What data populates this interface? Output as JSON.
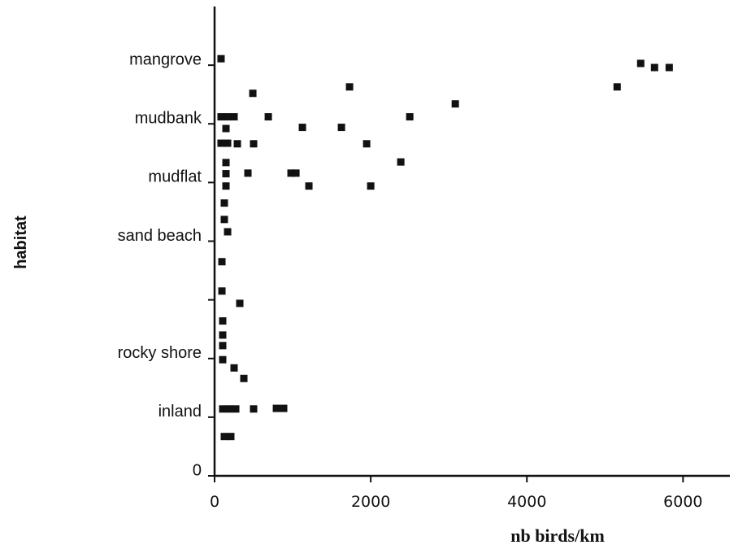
{
  "chart_data": {
    "type": "scatter",
    "xlabel": "nb birds/km",
    "ylabel": "habitat",
    "xlim": [
      0,
      6600
    ],
    "ylim": [
      0,
      8
    ],
    "xticks": [
      0,
      2000,
      4000,
      6000
    ],
    "yticks": [
      {
        "value": 0,
        "label": "0"
      },
      {
        "value": 1,
        "label": "inland"
      },
      {
        "value": 2,
        "label": "rocky shore"
      },
      {
        "value": 3,
        "label": null
      },
      {
        "value": 4,
        "label": "sand beach"
      },
      {
        "value": 5,
        "label": "mudflat"
      },
      {
        "value": 6,
        "label": "mudbank"
      },
      {
        "value": 7,
        "label": "mangrove"
      }
    ],
    "color": "#111111",
    "x": [
      83,
      5458,
      5635,
      5823,
      5156,
      1729,
      490,
      3083,
      688,
      2500,
      83,
      167,
      250,
      146,
      1125,
      1625,
      83,
      167,
      292,
      500,
      1948,
      2385,
      146,
      427,
      979,
      1042,
      146,
      146,
      1208,
      2000,
      125,
      125,
      167,
      94,
      94,
      323,
      104,
      104,
      104,
      104,
      250,
      375,
      104,
      188,
      271,
      500,
      792,
      885,
      125,
      208
    ],
    "y": [
      7.11,
      7.03,
      6.96,
      6.96,
      6.63,
      6.63,
      6.52,
      6.34,
      6.12,
      6.12,
      6.12,
      6.12,
      6.12,
      5.92,
      5.94,
      5.94,
      5.67,
      5.67,
      5.66,
      5.66,
      5.66,
      5.35,
      5.34,
      5.16,
      5.16,
      5.16,
      5.15,
      4.94,
      4.94,
      4.94,
      4.65,
      4.37,
      4.16,
      3.65,
      3.15,
      2.94,
      2.64,
      2.4,
      2.22,
      1.98,
      1.84,
      1.66,
      1.14,
      1.14,
      1.14,
      1.14,
      1.15,
      1.15,
      0.67,
      0.67
    ]
  }
}
